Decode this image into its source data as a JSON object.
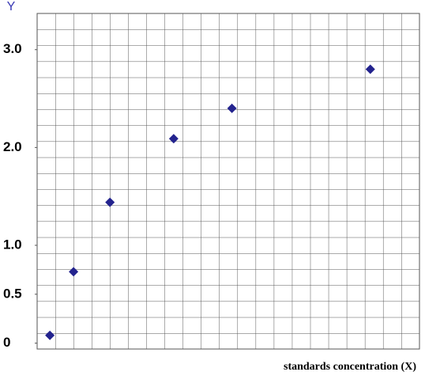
{
  "chart_data": {
    "type": "scatter",
    "title": "Y",
    "x_label": "standards concentration (X)",
    "x": [
      0.7,
      2,
      4,
      7.5,
      10.7,
      18.3
    ],
    "series": [
      {
        "color": "#23238e",
        "values": [
          0.08,
          0.73,
          1.44,
          2.09,
          2.4,
          2.8
        ]
      }
    ],
    "xlim": [
      0,
      21
    ],
    "ylim": [
      -0.06,
      3.37
    ],
    "yticks": [
      0,
      0.5,
      {
        "value": 1,
        "label": "1.0"
      },
      {
        "value": 2,
        "label": "2.0"
      },
      {
        "value": 3,
        "label": "3.0"
      }
    ],
    "grid": true
  }
}
